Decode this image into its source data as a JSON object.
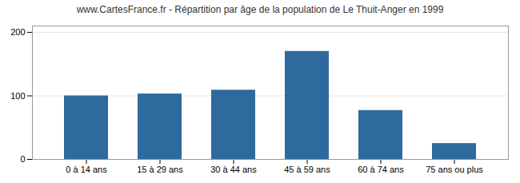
{
  "chart_data": {
    "type": "bar",
    "title": "www.CartesFrance.fr - Répartition par âge de la population de Le Thuit-Anger en 1999",
    "categories": [
      "0 à 14 ans",
      "15 à 29 ans",
      "30 à 44 ans",
      "45 à 59 ans",
      "60 à 74 ans",
      "75 ans ou plus"
    ],
    "values": [
      100,
      103,
      109,
      170,
      77,
      25
    ],
    "color": "#2e6a9e",
    "ylim": [
      0,
      210
    ],
    "yticks": [
      0,
      100,
      200
    ],
    "grid": true
  }
}
